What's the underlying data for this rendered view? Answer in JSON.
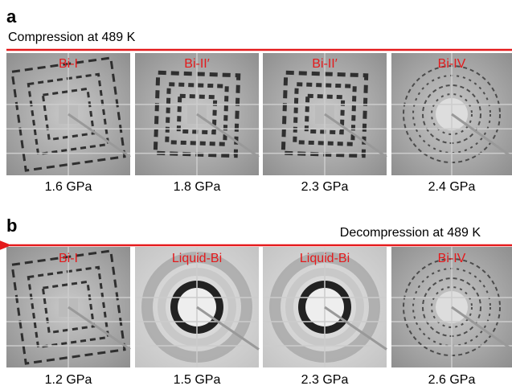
{
  "panels": [
    {
      "label": "a",
      "direction": "Compression at 489 K",
      "images": [
        {
          "phase": "Bi-I",
          "pressure": "1.6 GPa"
        },
        {
          "phase": "Bi-II′",
          "pressure": "1.8 GPa"
        },
        {
          "phase": "Bi-II′",
          "pressure": "2.3 GPa"
        },
        {
          "phase": "Bi-IV",
          "pressure": "2.4 GPa"
        }
      ]
    },
    {
      "label": "b",
      "direction": "Decompression at 489 K",
      "images": [
        {
          "phase": "Bi-I",
          "pressure": "1.2 GPa"
        },
        {
          "phase": "Liquid-Bi",
          "pressure": "1.5 GPa"
        },
        {
          "phase": "Liquid-Bi",
          "pressure": "2.3 GPa"
        },
        {
          "phase": "Bi-IV",
          "pressure": "2.6 GPa"
        }
      ]
    }
  ]
}
